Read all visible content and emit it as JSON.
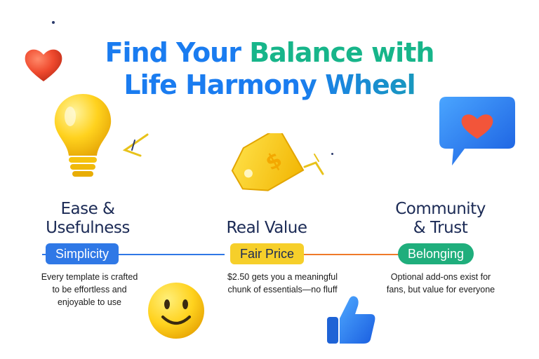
{
  "header": {
    "title_part1": "Find Your ",
    "title_part2": "Balance with",
    "title_line2": "Life Harmony Wheel"
  },
  "columns": [
    {
      "title_line1": "Ease &",
      "title_line2": "Usefulness",
      "pill": "Simplicity",
      "desc_line1": "Every template is crafted",
      "desc_line2": "to be effortless and",
      "desc_line3": "enjoyable to use"
    },
    {
      "title_line1": "Real Value",
      "pill": "Fair Price",
      "desc_line1": "$2.50 gets you a meaningful",
      "desc_line2": "chunk of essentials—no fluff"
    },
    {
      "title_line1": "Community",
      "title_line2": "& Trust",
      "pill": "Belonging",
      "desc_line1": "Optional add-ons exist for",
      "desc_line2": "fans, but value for everyone"
    }
  ],
  "colors": {
    "blue": "#1a7cf0",
    "green": "#17b58a",
    "yellow": "#f6cf2a",
    "navy": "#1b2a55",
    "red_heart": "#f0452e"
  },
  "icons": [
    "heart-icon",
    "lightbulb-icon",
    "price-tag-icon",
    "chat-heart-icon",
    "smiley-icon",
    "thumbs-up-icon"
  ]
}
